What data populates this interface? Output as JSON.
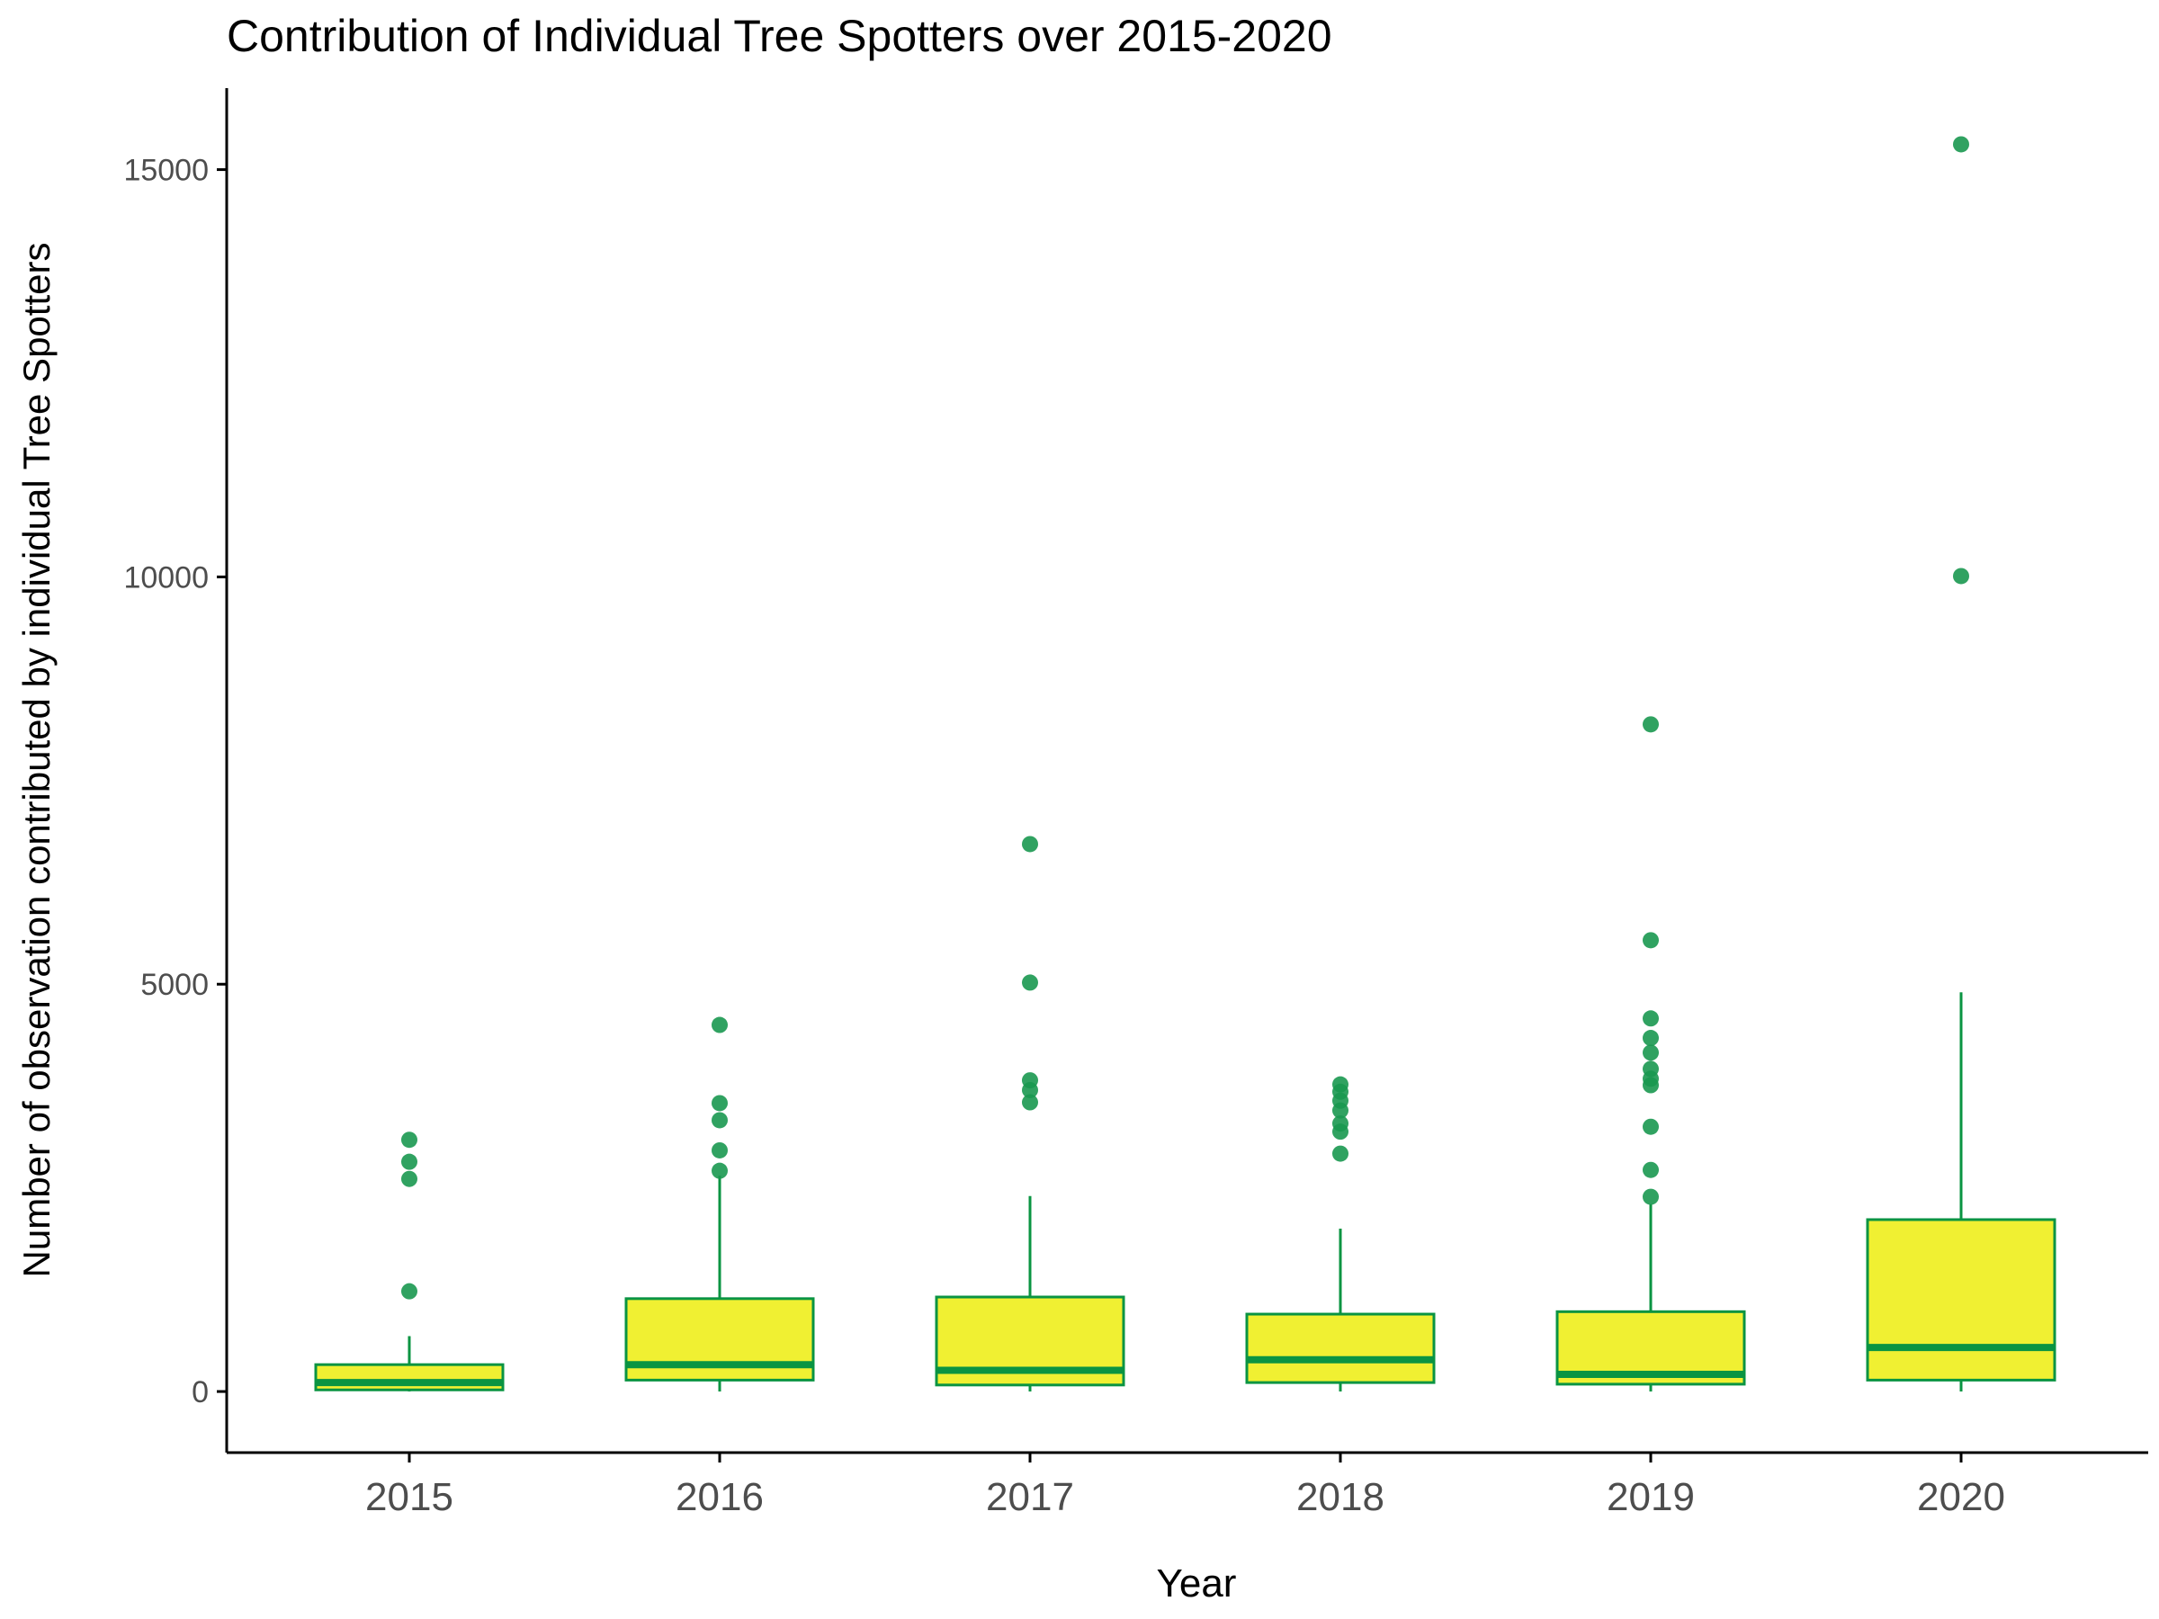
{
  "chart_data": {
    "type": "boxplot",
    "title": "Contribution of Individual Tree Spotters over 2015-2020",
    "xlabel": "Year",
    "ylabel": "Number of observation contributed by individual Tree Spotters",
    "ylim": [
      -750,
      16000
    ],
    "yticks": [
      0,
      5000,
      10000,
      15000
    ],
    "ytick_labels": [
      "0",
      "5000",
      "10000",
      "15000"
    ],
    "categories": [
      "2015",
      "2016",
      "2017",
      "2018",
      "2019",
      "2020"
    ],
    "grid": false,
    "legend": "none",
    "colors": {
      "box_fill": "#f0f032",
      "box_stroke": "#0a9442",
      "outlier": "#1a9850",
      "axis": "#000000"
    },
    "boxes": [
      {
        "category": "2015",
        "whisker_low": 0,
        "q1": 20,
        "median": 110,
        "q3": 330,
        "whisker_high": 680,
        "outliers": [
          1230,
          2610,
          2820,
          3090
        ]
      },
      {
        "category": "2016",
        "whisker_low": 0,
        "q1": 140,
        "median": 330,
        "q3": 1140,
        "whisker_high": 2650,
        "outliers": [
          2710,
          2960,
          3330,
          3540,
          4500
        ]
      },
      {
        "category": "2017",
        "whisker_low": 0,
        "q1": 80,
        "median": 260,
        "q3": 1160,
        "whisker_high": 2400,
        "outliers": [
          3550,
          3700,
          3820,
          5020,
          6720
        ]
      },
      {
        "category": "2018",
        "whisker_low": 0,
        "q1": 110,
        "median": 390,
        "q3": 950,
        "whisker_high": 2000,
        "outliers": [
          2920,
          3190,
          3290,
          3450,
          3570,
          3680,
          3770
        ]
      },
      {
        "category": "2019",
        "whisker_low": 0,
        "q1": 90,
        "median": 210,
        "q3": 980,
        "whisker_high": 2300,
        "outliers": [
          2390,
          2720,
          3250,
          3760,
          3840,
          3960,
          4160,
          4340,
          4580,
          5540,
          8190
        ]
      },
      {
        "category": "2020",
        "whisker_low": 0,
        "q1": 140,
        "median": 540,
        "q3": 2110,
        "whisker_high": 4900,
        "outliers": [
          10010,
          15310
        ]
      }
    ]
  }
}
